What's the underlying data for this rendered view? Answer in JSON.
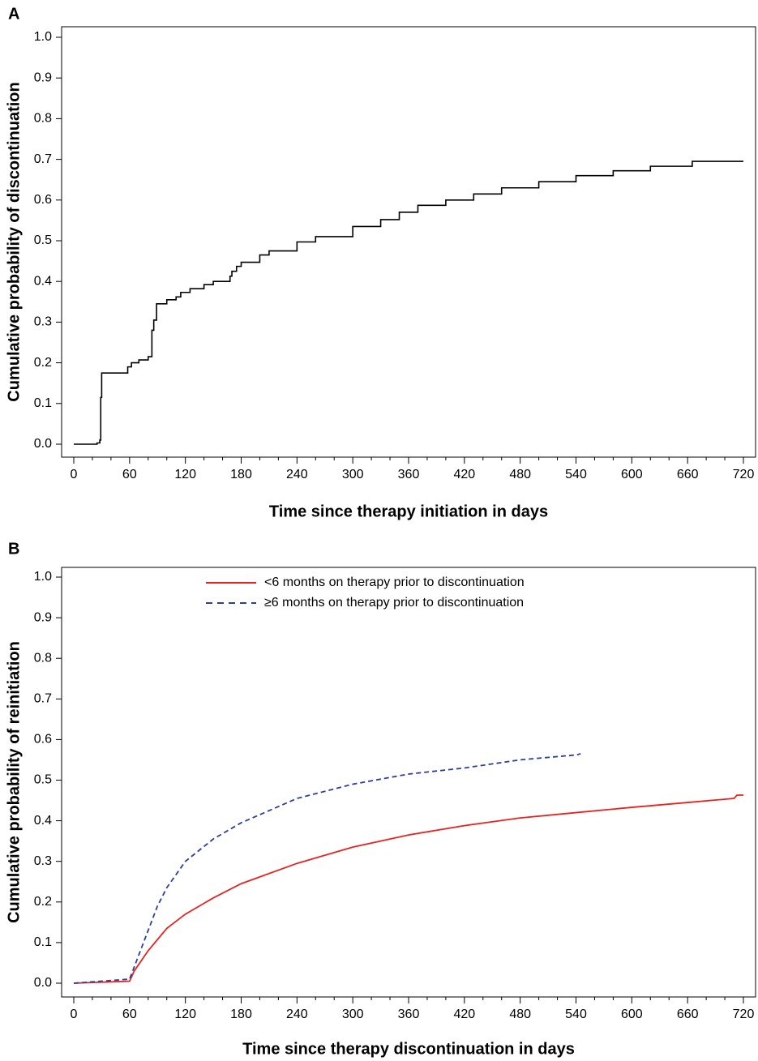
{
  "chart_data": [
    {
      "type": "step",
      "label": "A",
      "x_label": "Time since therapy initiation in days",
      "y_label": "Cumulative probability of discontinuation",
      "xlim": [
        0,
        720
      ],
      "ylim": [
        0,
        1
      ],
      "xticks": [
        0,
        60,
        120,
        180,
        240,
        300,
        360,
        420,
        480,
        540,
        600,
        660,
        720
      ],
      "xminorticks": [
        20,
        40,
        80,
        100,
        140,
        160,
        200,
        220,
        260,
        280,
        320,
        340,
        380,
        400,
        440,
        460,
        500,
        520,
        560,
        580,
        620,
        640,
        680,
        700
      ],
      "yticks": [
        {
          "value": 0,
          "label": "0.0"
        },
        0.1,
        0.2,
        0.3,
        0.4,
        0.5,
        0.6,
        0.7,
        0.8,
        0.9,
        {
          "value": 1,
          "label": "1.0"
        }
      ],
      "series": [
        {
          "color": "#000000",
          "dash": false,
          "x": [
            0,
            25,
            28,
            29,
            30,
            55,
            58,
            62,
            70,
            80,
            84,
            86,
            89,
            100,
            110,
            115,
            125,
            140,
            150,
            168,
            170,
            175,
            180,
            200,
            210,
            240,
            260,
            300,
            330,
            350,
            370,
            400,
            430,
            460,
            500,
            540,
            580,
            620,
            665,
            720
          ],
          "values": [
            0,
            0.003,
            0.01,
            0.115,
            0.175,
            0.175,
            0.19,
            0.2,
            0.207,
            0.215,
            0.28,
            0.305,
            0.345,
            0.355,
            0.362,
            0.373,
            0.382,
            0.392,
            0.4,
            0.413,
            0.425,
            0.437,
            0.447,
            0.465,
            0.475,
            0.497,
            0.51,
            0.535,
            0.552,
            0.57,
            0.587,
            0.6,
            0.615,
            0.63,
            0.645,
            0.66,
            0.672,
            0.683,
            0.695,
            0.695
          ]
        }
      ]
    },
    {
      "type": "line",
      "label": "B",
      "x_label": "Time since therapy discontinuation in days",
      "y_label": "Cumulative probability of reinitiation",
      "xlim": [
        0,
        720
      ],
      "ylim": [
        0,
        1
      ],
      "legend": "top",
      "xticks": [
        0,
        60,
        120,
        180,
        240,
        300,
        360,
        420,
        480,
        540,
        600,
        660,
        720
      ],
      "xminorticks": [
        20,
        40,
        80,
        100,
        140,
        160,
        200,
        220,
        260,
        280,
        320,
        340,
        380,
        400,
        440,
        460,
        500,
        520,
        560,
        580,
        620,
        640,
        680,
        700
      ],
      "yticks": [
        {
          "value": 0,
          "label": "0.0"
        },
        0.1,
        0.2,
        0.3,
        0.4,
        0.5,
        0.6,
        0.7,
        0.8,
        0.9,
        {
          "value": 1,
          "label": "1.0"
        }
      ],
      "series": [
        {
          "name": "<6 months on therapy prior to discontinuation",
          "color": "#e8221e",
          "dash": false,
          "x": [
            0,
            60,
            65,
            80,
            100,
            120,
            150,
            180,
            240,
            300,
            360,
            420,
            480,
            540,
            600,
            660,
            710,
            713,
            720
          ],
          "values": [
            0,
            0.005,
            0.03,
            0.08,
            0.135,
            0.17,
            0.21,
            0.245,
            0.295,
            0.335,
            0.365,
            0.388,
            0.407,
            0.42,
            0.433,
            0.445,
            0.455,
            0.463,
            0.463
          ]
        },
        {
          "name": "≥6 months on therapy prior to discontinuation",
          "color": "#2a3f9e",
          "dash": true,
          "x": [
            0,
            60,
            65,
            80,
            90,
            100,
            120,
            150,
            180,
            210,
            240,
            300,
            360,
            420,
            480,
            540,
            545
          ],
          "values": [
            0,
            0.01,
            0.04,
            0.13,
            0.19,
            0.235,
            0.3,
            0.355,
            0.395,
            0.425,
            0.455,
            0.49,
            0.515,
            0.53,
            0.55,
            0.562,
            0.565
          ]
        }
      ]
    }
  ]
}
